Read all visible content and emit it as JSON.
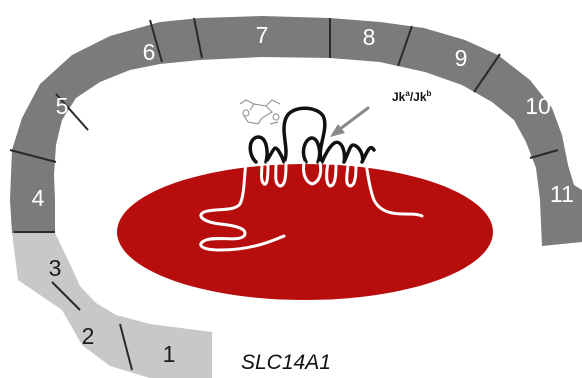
{
  "gene": {
    "name": "SLC14A1",
    "exons": [
      {
        "label": "1",
        "tone": "light"
      },
      {
        "label": "2",
        "tone": "light"
      },
      {
        "label": "3",
        "tone": "light"
      },
      {
        "label": "4",
        "tone": "dark"
      },
      {
        "label": "5",
        "tone": "dark"
      },
      {
        "label": "6",
        "tone": "dark"
      },
      {
        "label": "7",
        "tone": "dark"
      },
      {
        "label": "8",
        "tone": "dark"
      },
      {
        "label": "9",
        "tone": "dark"
      },
      {
        "label": "10",
        "tone": "dark"
      },
      {
        "label": "11",
        "tone": "dark"
      }
    ]
  },
  "antigen": {
    "base": "Jk",
    "allele_a": "a",
    "separator": "/",
    "allele_b": "b"
  },
  "colors": {
    "exon_light": "#c8c8c8",
    "exon_dark": "#7b7b7b",
    "cell": "#b80d0d",
    "protein_outline": "#111111",
    "protein_inside": "#ffffff",
    "arrow": "#888888"
  }
}
